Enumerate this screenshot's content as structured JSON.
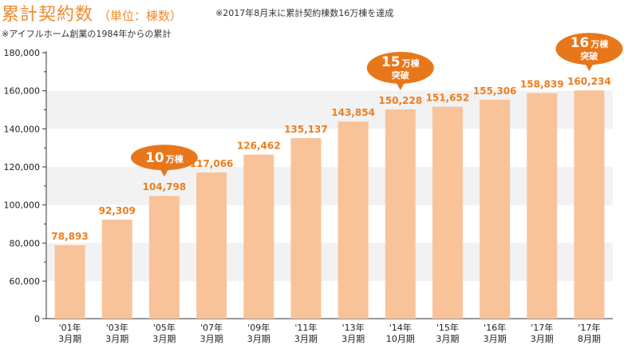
{
  "header": {
    "title": "累計契約数",
    "unit": "（単位：棟数）",
    "note_achievement": "※2017年8月末に累計契約棟数16万棟を達成",
    "note_founding": "※アイフルホーム創業の1984年からの累計"
  },
  "colors": {
    "bar": "#f9c39a",
    "value_label": "#ee7d1e",
    "callout": "#e8771b",
    "band": "#f2f2f2",
    "axis": "#333333"
  },
  "chart_data": {
    "type": "bar",
    "title": "累計契約数",
    "ylabel": "",
    "xlabel": "",
    "ylim": [
      0,
      180000
    ],
    "yticks": [
      {
        "value": 0,
        "label": "0"
      },
      {
        "value": 60000,
        "label": "60,000"
      },
      {
        "value": 80000,
        "label": "80,000"
      },
      {
        "value": 100000,
        "label": "100,000"
      },
      {
        "value": 120000,
        "label": "120,000"
      },
      {
        "value": 140000,
        "label": "140,000"
      },
      {
        "value": 160000,
        "label": "160,000"
      },
      {
        "value": 180000,
        "label": "180,000"
      }
    ],
    "y_axis_break": "0 to 60,000 compressed",
    "grid": "alternating horizontal bands",
    "categories": [
      [
        "'01年",
        "3月期"
      ],
      [
        "'03年",
        "3月期"
      ],
      [
        "'05年",
        "3月期"
      ],
      [
        "'07年",
        "3月期"
      ],
      [
        "'09年",
        "3月期"
      ],
      [
        "'11年",
        "3月期"
      ],
      [
        "'13年",
        "3月期"
      ],
      [
        "'14年",
        "10月期"
      ],
      [
        "'15年",
        "3月期"
      ],
      [
        "'16年",
        "3月期"
      ],
      [
        "'17年",
        "3月期"
      ],
      [
        "'17年",
        "8月期"
      ]
    ],
    "values": [
      78893,
      92309,
      104798,
      117066,
      126462,
      135137,
      143854,
      150228,
      151652,
      155306,
      158839,
      160234
    ],
    "value_labels": [
      "78,893",
      "92,309",
      "104,798",
      "117,066",
      "126,462",
      "135,137",
      "143,854",
      "150,228",
      "151,652",
      "155,306",
      "158,839",
      "160,234"
    ],
    "annotations": [
      {
        "index": 2,
        "lines": [
          {
            "num": "10",
            "suffix": "万棟"
          }
        ]
      },
      {
        "index": 7,
        "lines": [
          {
            "num": "15",
            "suffix": "万棟"
          },
          {
            "num": "",
            "suffix": "突破"
          }
        ]
      },
      {
        "index": 11,
        "lines": [
          {
            "num": "16",
            "suffix": "万棟"
          },
          {
            "num": "",
            "suffix": "突破"
          }
        ]
      }
    ]
  }
}
